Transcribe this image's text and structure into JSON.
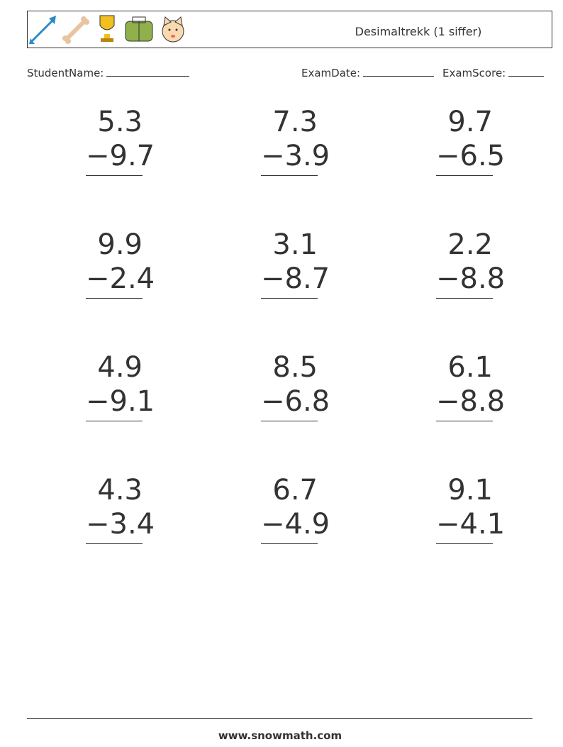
{
  "header": {
    "title": "Desimaltrekk (1 siffer)"
  },
  "fields": {
    "student_name": "StudentName:",
    "exam_date": "ExamDate:",
    "exam_score": "ExamScore:"
  },
  "problems": [
    {
      "top": "5.3",
      "bottom": "−9.7"
    },
    {
      "top": "7.3",
      "bottom": "−3.9"
    },
    {
      "top": "9.7",
      "bottom": "−6.5"
    },
    {
      "top": "9.9",
      "bottom": "−2.4"
    },
    {
      "top": "3.1",
      "bottom": "−8.7"
    },
    {
      "top": "2.2",
      "bottom": "−8.8"
    },
    {
      "top": "4.9",
      "bottom": "−9.1"
    },
    {
      "top": "8.5",
      "bottom": "−6.8"
    },
    {
      "top": "6.1",
      "bottom": "−8.8"
    },
    {
      "top": "4.3",
      "bottom": "−3.4"
    },
    {
      "top": "6.7",
      "bottom": "−4.9"
    },
    {
      "top": "9.1",
      "bottom": "−4.1"
    }
  ],
  "footer": "www.snowmath.com"
}
